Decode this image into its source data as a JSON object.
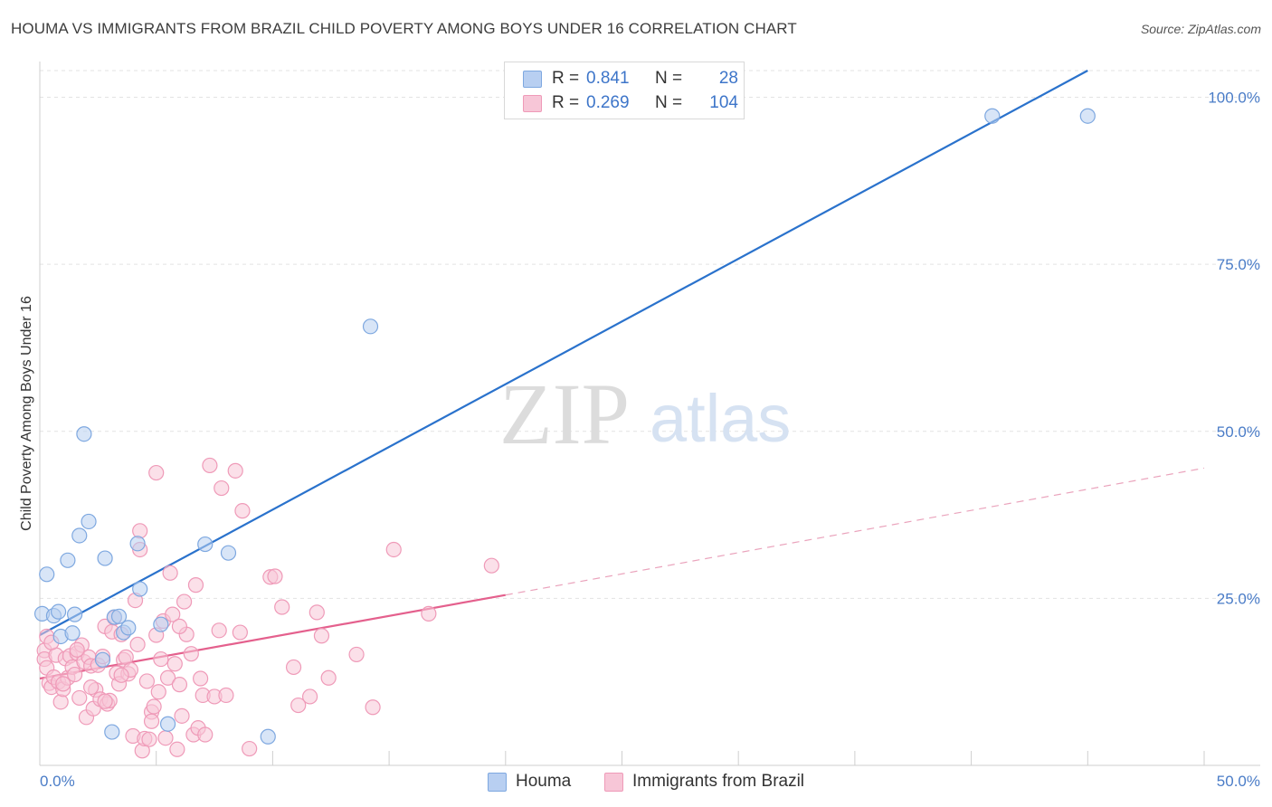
{
  "chart_data": {
    "type": "scatter",
    "title": "HOUMA VS IMMIGRANTS FROM BRAZIL CHILD POVERTY AMONG BOYS UNDER 16 CORRELATION CHART",
    "source": "Source: ZipAtlas.com",
    "xlabel": "",
    "ylabel": "Child Poverty Among Boys Under 16",
    "xlim": [
      0,
      50
    ],
    "ylim": [
      0,
      104
    ],
    "x_tick_labels": {
      "left": "0.0%",
      "right": "50.0%"
    },
    "y_ticks": [
      {
        "value": 25,
        "label": "25.0%"
      },
      {
        "value": 50,
        "label": "50.0%"
      },
      {
        "value": 75,
        "label": "75.0%"
      },
      {
        "value": 100,
        "label": "100.0%"
      }
    ],
    "watermark": {
      "zip": "ZIP",
      "atlas": "atlas"
    },
    "legend": {
      "r_label": "R =",
      "n_label": "N =",
      "rows": [
        {
          "name": "Houma",
          "r": "0.841",
          "n": "28"
        },
        {
          "name": "Immigrants from Brazil",
          "r": "0.269",
          "n": "104"
        }
      ]
    },
    "series": [
      {
        "name": "Houma",
        "color": "#7ea8e0",
        "fill": "#b8cff1",
        "line_color": "#2a72cc",
        "trend": {
          "x0": 0,
          "y0": 19.5,
          "x1": 45,
          "y1": 104
        },
        "points": [
          [
            0.1,
            22.7
          ],
          [
            0.3,
            28.6
          ],
          [
            0.6,
            22.4
          ],
          [
            0.8,
            23.0
          ],
          [
            0.9,
            19.3
          ],
          [
            1.2,
            30.7
          ],
          [
            1.4,
            19.8
          ],
          [
            1.5,
            22.6
          ],
          [
            1.7,
            34.4
          ],
          [
            1.9,
            49.6
          ],
          [
            2.1,
            36.5
          ],
          [
            2.7,
            15.8
          ],
          [
            2.8,
            31.0
          ],
          [
            3.1,
            5.0
          ],
          [
            3.2,
            22.2
          ],
          [
            3.4,
            22.3
          ],
          [
            3.6,
            19.9
          ],
          [
            3.8,
            20.6
          ],
          [
            4.3,
            26.4
          ],
          [
            4.2,
            33.2
          ],
          [
            5.2,
            21.1
          ],
          [
            5.5,
            6.2
          ],
          [
            7.1,
            33.1
          ],
          [
            8.1,
            31.8
          ],
          [
            9.8,
            4.3
          ],
          [
            14.2,
            65.7
          ],
          [
            40.9,
            97.2
          ],
          [
            45.0,
            97.2
          ]
        ]
      },
      {
        "name": "Immigrants from Brazil",
        "color": "#ef9ab8",
        "fill": "#f7c6d7",
        "line_color": "#e4608d",
        "trend_solid": {
          "x0": 0,
          "y0": 13.0,
          "x1": 20,
          "y1": 25.5
        },
        "trend_dashed": {
          "x0": 20,
          "y0": 25.5,
          "x1": 50,
          "y1": 44.5
        },
        "points": [
          [
            0.2,
            17.2
          ],
          [
            0.2,
            15.9
          ],
          [
            0.3,
            14.6
          ],
          [
            0.4,
            12.3
          ],
          [
            0.5,
            11.7
          ],
          [
            0.6,
            13.2
          ],
          [
            0.7,
            16.5
          ],
          [
            0.8,
            12.5
          ],
          [
            0.9,
            9.5
          ],
          [
            1.0,
            11.4
          ],
          [
            1.1,
            16.0
          ],
          [
            1.2,
            13.1
          ],
          [
            1.3,
            16.4
          ],
          [
            1.4,
            14.7
          ],
          [
            1.5,
            13.6
          ],
          [
            1.6,
            16.8
          ],
          [
            1.7,
            10.1
          ],
          [
            1.8,
            18.0
          ],
          [
            1.9,
            15.5
          ],
          [
            2.0,
            7.2
          ],
          [
            2.1,
            16.2
          ],
          [
            2.2,
            14.9
          ],
          [
            2.3,
            8.5
          ],
          [
            2.4,
            11.3
          ],
          [
            2.5,
            15.0
          ],
          [
            2.6,
            9.9
          ],
          [
            2.7,
            16.3
          ],
          [
            2.8,
            20.8
          ],
          [
            2.9,
            9.2
          ],
          [
            3.0,
            9.7
          ],
          [
            3.1,
            20.0
          ],
          [
            3.2,
            22.1
          ],
          [
            3.3,
            13.8
          ],
          [
            3.4,
            12.2
          ],
          [
            3.5,
            19.6
          ],
          [
            3.6,
            15.8
          ],
          [
            3.7,
            16.2
          ],
          [
            3.8,
            13.7
          ],
          [
            3.9,
            14.3
          ],
          [
            4.0,
            4.4
          ],
          [
            4.1,
            24.7
          ],
          [
            4.2,
            18.1
          ],
          [
            4.3,
            32.3
          ],
          [
            4.3,
            35.1
          ],
          [
            4.4,
            2.2
          ],
          [
            4.5,
            4.0
          ],
          [
            4.6,
            12.6
          ],
          [
            4.7,
            3.9
          ],
          [
            4.8,
            8.0
          ],
          [
            4.9,
            8.8
          ],
          [
            5.0,
            43.8
          ],
          [
            5.0,
            19.5
          ],
          [
            5.1,
            11.0
          ],
          [
            5.2,
            15.9
          ],
          [
            5.3,
            21.6
          ],
          [
            5.4,
            4.1
          ],
          [
            5.5,
            13.1
          ],
          [
            5.6,
            28.8
          ],
          [
            5.7,
            22.6
          ],
          [
            5.8,
            15.2
          ],
          [
            5.9,
            2.4
          ],
          [
            6.0,
            12.1
          ],
          [
            6.1,
            7.4
          ],
          [
            6.2,
            24.5
          ],
          [
            6.3,
            19.6
          ],
          [
            6.5,
            16.7
          ],
          [
            6.6,
            4.6
          ],
          [
            6.7,
            27.0
          ],
          [
            6.8,
            5.6
          ],
          [
            6.9,
            13.0
          ],
          [
            7.0,
            10.5
          ],
          [
            7.1,
            4.6
          ],
          [
            7.3,
            44.9
          ],
          [
            7.5,
            10.3
          ],
          [
            7.7,
            20.2
          ],
          [
            7.8,
            41.5
          ],
          [
            8.0,
            10.5
          ],
          [
            8.4,
            44.1
          ],
          [
            8.6,
            19.9
          ],
          [
            8.7,
            38.1
          ],
          [
            9.0,
            2.5
          ],
          [
            9.9,
            28.2
          ],
          [
            10.1,
            28.3
          ],
          [
            10.4,
            23.7
          ],
          [
            10.9,
            14.7
          ],
          [
            11.1,
            9.0
          ],
          [
            11.6,
            10.3
          ],
          [
            11.9,
            22.9
          ],
          [
            12.1,
            19.4
          ],
          [
            12.4,
            13.1
          ],
          [
            13.6,
            16.6
          ],
          [
            14.3,
            8.7
          ],
          [
            15.2,
            32.3
          ],
          [
            16.7,
            22.7
          ],
          [
            19.4,
            29.9
          ],
          [
            0.3,
            19.3
          ],
          [
            0.5,
            18.4
          ],
          [
            1.0,
            12.2
          ],
          [
            1.6,
            17.3
          ],
          [
            2.2,
            11.7
          ],
          [
            2.8,
            9.6
          ],
          [
            3.5,
            13.5
          ],
          [
            4.8,
            6.6
          ],
          [
            6.0,
            20.8
          ]
        ]
      }
    ]
  }
}
